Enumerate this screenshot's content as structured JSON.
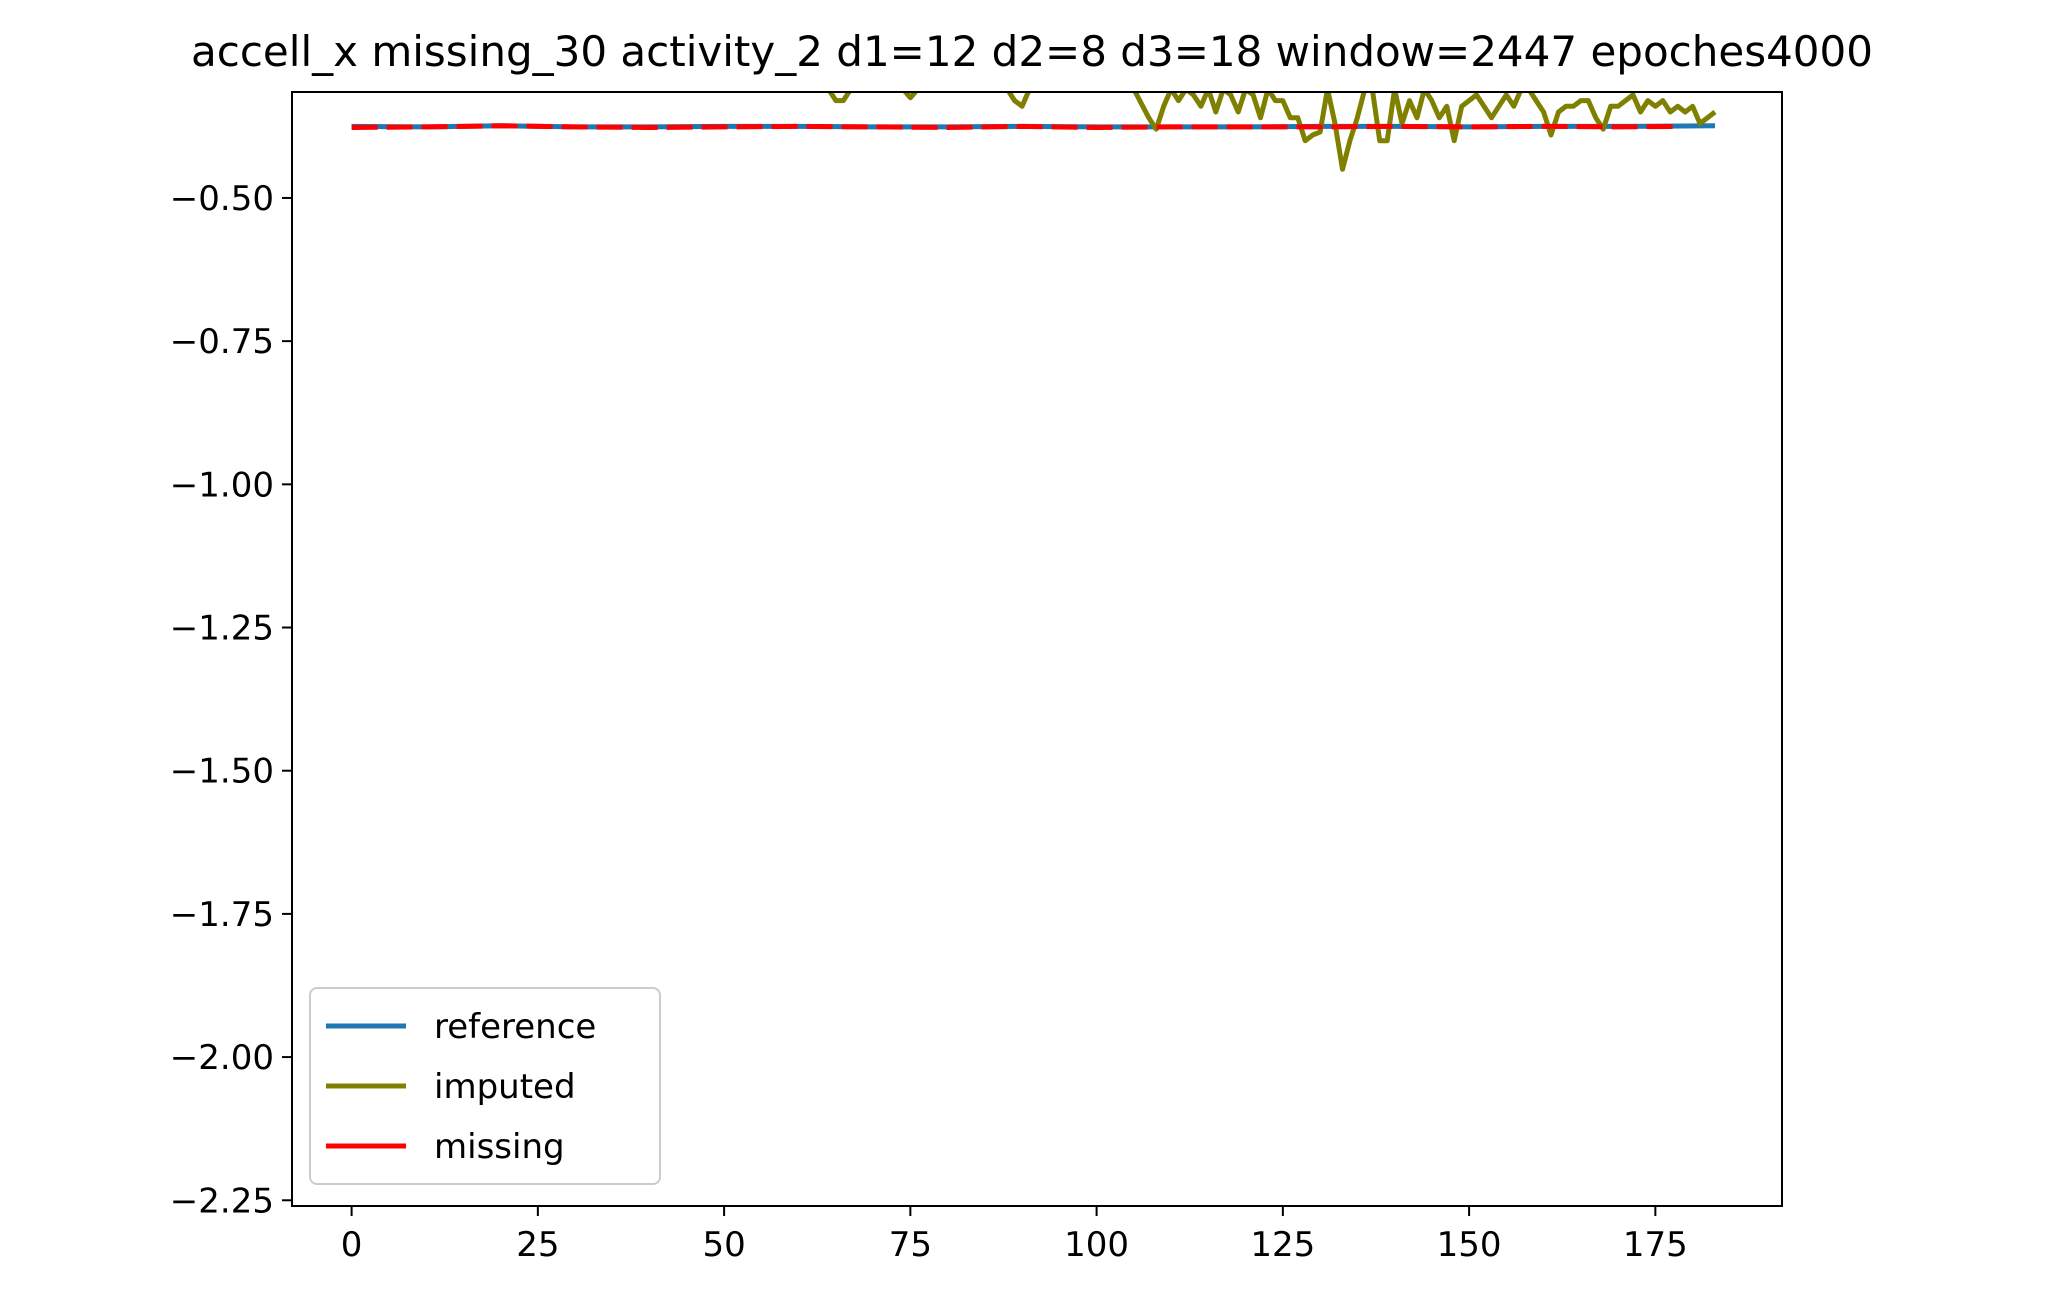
{
  "chart_data": {
    "type": "line",
    "title": "accell_x missing_30 activity_2 d1=12 d2=8 d3=18 window=2447 epoches4000",
    "xlabel": "",
    "ylabel": "",
    "xlim": [
      -8,
      192
    ],
    "ylim": [
      -2.26,
      -0.315
    ],
    "xticks": [
      0,
      25,
      50,
      75,
      100,
      125,
      150,
      175
    ],
    "xtick_labels": [
      "0",
      "25",
      "50",
      "75",
      "100",
      "125",
      "150",
      "175"
    ],
    "yticks": [
      -0.5,
      -0.75,
      -1.0,
      -1.25,
      -1.5,
      -1.75,
      -2.0,
      -2.25
    ],
    "ytick_labels": [
      "−0.50",
      "−0.75",
      "−1.00",
      "−1.25",
      "−1.50",
      "−1.75",
      "−2.00",
      "−2.25"
    ],
    "grid": false,
    "legend_position": "lower-left",
    "series": [
      {
        "name": "reference",
        "color": "#1f77b4",
        "x": [
          0,
          10,
          20,
          30,
          40,
          50,
          60,
          70,
          80,
          90,
          100,
          110,
          120,
          130,
          140,
          150,
          160,
          170,
          183
        ],
        "y": [
          -0.375,
          -0.376,
          -0.374,
          -0.376,
          -0.376,
          -0.375,
          -0.375,
          -0.376,
          -0.376,
          -0.375,
          -0.376,
          -0.376,
          -0.376,
          -0.375,
          -0.375,
          -0.376,
          -0.375,
          -0.375,
          -0.374
        ]
      },
      {
        "name": "imputed",
        "color": "#808000",
        "x": [
          64,
          65,
          66,
          67,
          74,
          75,
          76,
          88,
          89,
          90,
          91,
          105,
          106,
          107,
          108,
          109,
          110,
          111,
          112,
          113,
          114,
          115,
          116,
          117,
          118,
          119,
          120,
          121,
          122,
          123,
          124,
          125,
          126,
          127,
          128,
          129,
          130,
          131,
          132,
          133,
          134,
          135,
          136,
          137,
          138,
          139,
          140,
          141,
          142,
          143,
          144,
          145,
          146,
          147,
          148,
          149,
          150,
          151,
          152,
          153,
          154,
          155,
          156,
          157,
          158,
          159,
          160,
          161,
          162,
          163,
          164,
          165,
          166,
          167,
          168,
          169,
          170,
          171,
          172,
          173,
          174,
          175,
          176,
          177,
          178,
          179,
          180,
          181,
          182,
          183
        ],
        "y": [
          -0.31,
          -0.33,
          -0.33,
          -0.31,
          -0.31,
          -0.325,
          -0.31,
          -0.31,
          -0.33,
          -0.34,
          -0.31,
          -0.31,
          -0.335,
          -0.36,
          -0.38,
          -0.34,
          -0.31,
          -0.33,
          -0.31,
          -0.32,
          -0.34,
          -0.31,
          -0.35,
          -0.31,
          -0.32,
          -0.35,
          -0.31,
          -0.32,
          -0.36,
          -0.31,
          -0.33,
          -0.33,
          -0.36,
          -0.36,
          -0.4,
          -0.39,
          -0.385,
          -0.31,
          -0.37,
          -0.45,
          -0.4,
          -0.36,
          -0.31,
          -0.31,
          -0.4,
          -0.4,
          -0.31,
          -0.37,
          -0.33,
          -0.36,
          -0.31,
          -0.33,
          -0.36,
          -0.34,
          -0.4,
          -0.34,
          -0.33,
          -0.32,
          -0.34,
          -0.36,
          -0.34,
          -0.32,
          -0.34,
          -0.31,
          -0.31,
          -0.33,
          -0.35,
          -0.39,
          -0.35,
          -0.34,
          -0.34,
          -0.33,
          -0.33,
          -0.36,
          -0.38,
          -0.34,
          -0.34,
          -0.33,
          -0.32,
          -0.35,
          -0.33,
          -0.34,
          -0.33,
          -0.35,
          -0.34,
          -0.35,
          -0.34,
          -0.37,
          -0.36,
          -0.35
        ]
      },
      {
        "name": "missing",
        "color": "#ff0000",
        "x": [
          0,
          10,
          20,
          30,
          40,
          50,
          60,
          70,
          80,
          90,
          100,
          110,
          120,
          130,
          140,
          150,
          160,
          170,
          178
        ],
        "y": [
          -0.377,
          -0.376,
          -0.374,
          -0.376,
          -0.377,
          -0.376,
          -0.375,
          -0.376,
          -0.377,
          -0.375,
          -0.377,
          -0.376,
          -0.376,
          -0.376,
          -0.375,
          -0.376,
          -0.375,
          -0.376,
          -0.375
        ]
      }
    ]
  }
}
